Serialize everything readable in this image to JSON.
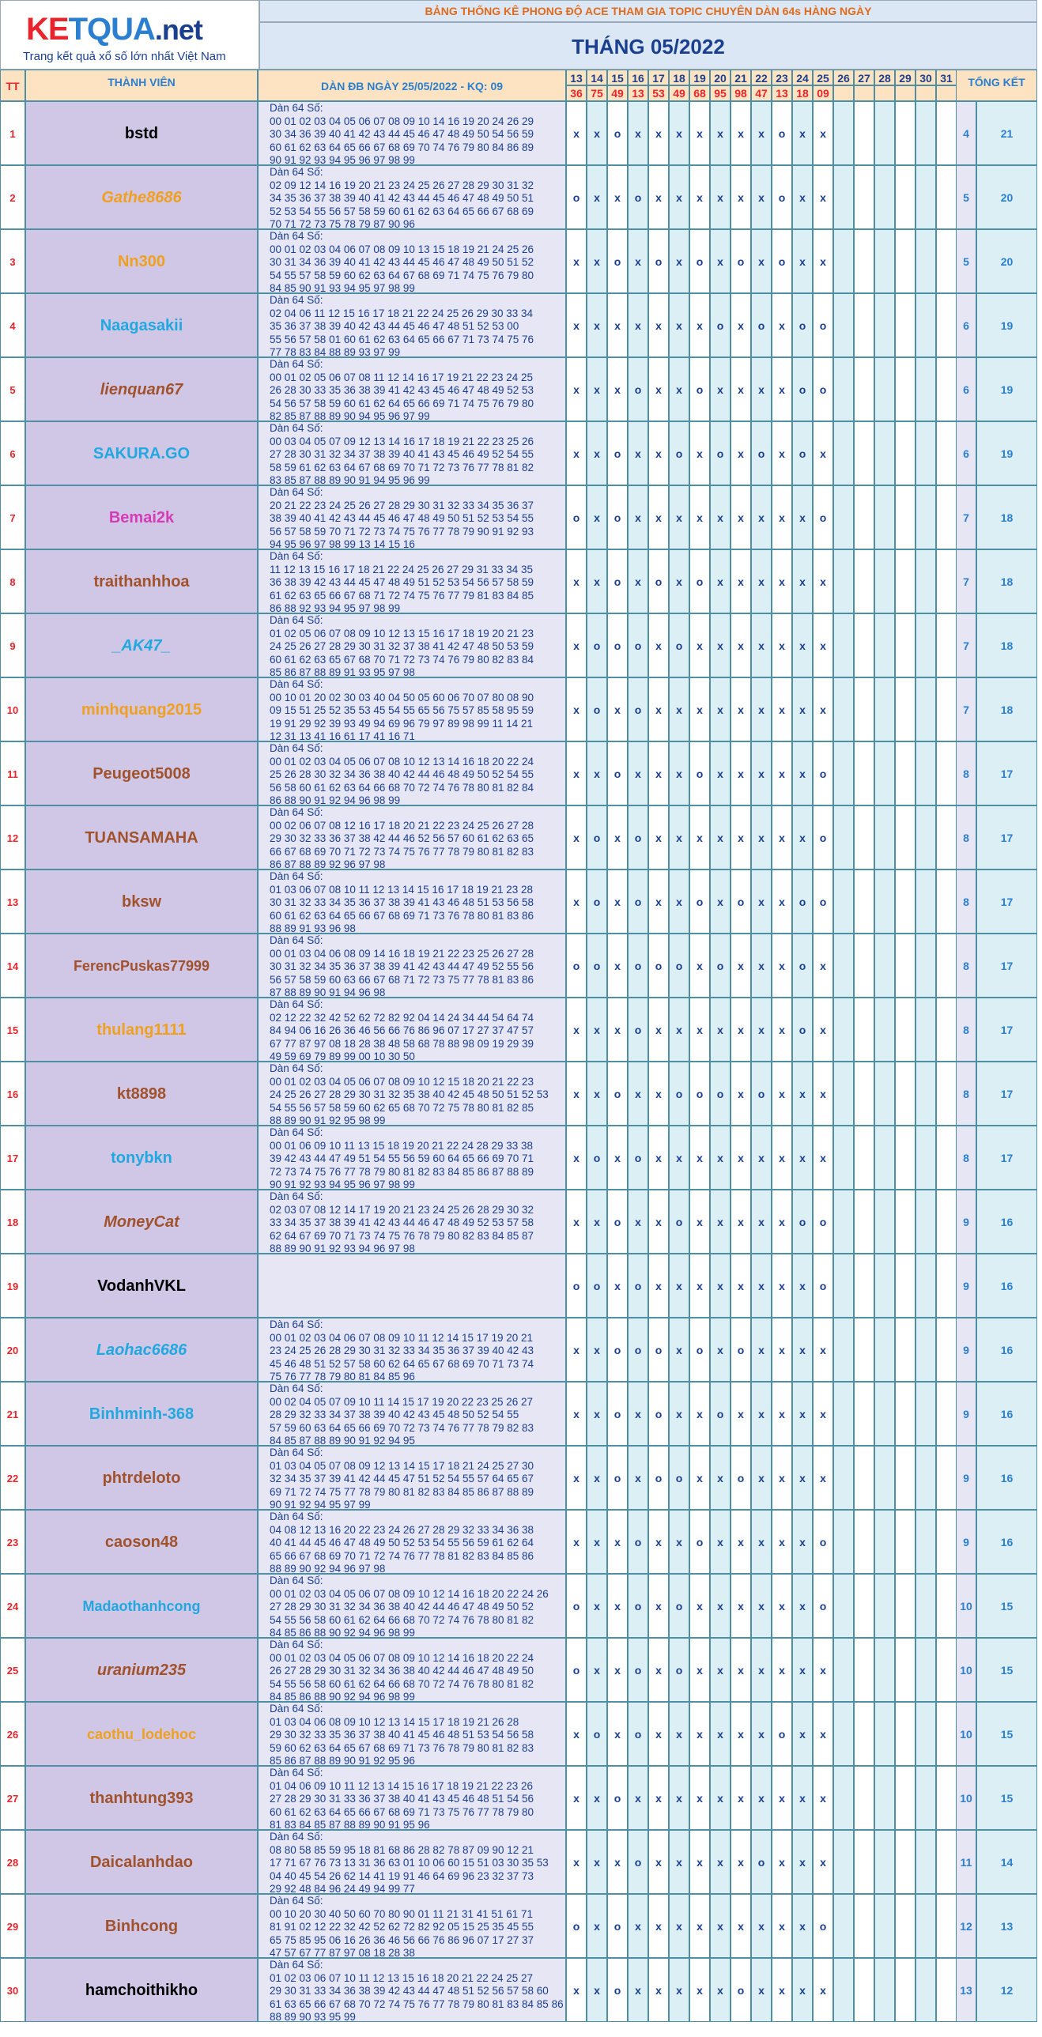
{
  "logo": {
    "k": "KE",
    "q": "TQUA",
    "net": ".net",
    "tagline": "Trang kết quả xổ số lớn nhất Việt Nam"
  },
  "banner": "BẢNG THỐNG KÊ PHONG ĐỘ ACE THAM GIA TOPIC CHUYÊN DÀN 64s HÀNG NGÀY",
  "month_title": "THÁNG 05/2022",
  "headers": {
    "tt": "TT",
    "member": "THÀNH VIÊN",
    "dan": "DÀN ĐB NGÀY 25/05/2022 - KQ: 09",
    "total": "TỔNG KẾT"
  },
  "days": [
    "13",
    "14",
    "15",
    "16",
    "17",
    "18",
    "19",
    "20",
    "21",
    "22",
    "23",
    "24",
    "25",
    "26",
    "27",
    "28",
    "29",
    "30",
    "31"
  ],
  "results": [
    "36",
    "75",
    "49",
    "13",
    "53",
    "49",
    "68",
    "95",
    "98",
    "47",
    "13",
    "18",
    "09",
    "",
    "",
    "",
    "",
    "",
    ""
  ],
  "rows": [
    {
      "tt": "1",
      "name": "bstd",
      "color": "#000000",
      "italic": false,
      "dan": "Dàn 64 Số:\n00 01 02 03 04 05 06 07 08 09 10 14 16 19 20 24 26 29\n30 34 36 39 40 41 42 43 44 45 46 47 48 49 50 54 56 59\n60 61 62 63 64 65 66 67 68 69 70 74 76 79 80 84 86 89\n90 91 92 93 94 95 96 97 98 99",
      "marks": [
        "x",
        "x",
        "o",
        "x",
        "x",
        "x",
        "x",
        "x",
        "x",
        "x",
        "o",
        "x",
        "x"
      ],
      "a": "4",
      "b": "21"
    },
    {
      "tt": "2",
      "name": "Gathe8686",
      "color": "#f0a020",
      "italic": true,
      "dan": "Dàn 64 Số:\n02 09 12 14 16 19 20 21 23 24 25 26 27 28 29 30 31 32\n34 35 36 37 38 39 40 41 42 43 44 45 46 47 48 49 50 51\n52 53 54 55 56 57 58 59 60 61 62 63 64 65 66 67 68 69\n70 71 72 73 75 78 79 87 90 96",
      "marks": [
        "o",
        "x",
        "x",
        "o",
        "x",
        "x",
        "x",
        "x",
        "x",
        "x",
        "o",
        "x",
        "x"
      ],
      "a": "5",
      "b": "20"
    },
    {
      "tt": "3",
      "name": "Nn300",
      "color": "#f0a020",
      "italic": false,
      "dan": "Dàn 64 Số:\n00 01 02 03 04 06 07 08 09 10 13 15 18 19 21 24 25 26\n30 31 34 36 39 40 41 42 43 44 45 46 47 48 49 50 51 52\n54 55 57 58 59 60 62 63 64 67 68 69 71 74 75 76 79 80\n84 85 90 91 93 94 95 97 98 99",
      "marks": [
        "x",
        "x",
        "o",
        "x",
        "o",
        "x",
        "o",
        "x",
        "o",
        "x",
        "o",
        "x",
        "x"
      ],
      "a": "5",
      "b": "20"
    },
    {
      "tt": "4",
      "name": "Naagasakii",
      "color": "#22a8e0",
      "italic": false,
      "dan": "Dàn 64 Số:\n02 04 06 11 12 15 16 17 18 21 22 24 25 26 29 30 33 34\n35 36 37 38 39 40 42 43 44 45 46 47 48 51 52 53 00\n55 56 57 58 01 60 61 62 63 64 65 66 67 71 73 74 75 76\n77 78 83 84 88 89 93 97 99",
      "marks": [
        "x",
        "x",
        "x",
        "x",
        "x",
        "x",
        "x",
        "o",
        "x",
        "o",
        "x",
        "o",
        "o"
      ],
      "a": "6",
      "b": "19"
    },
    {
      "tt": "5",
      "name": "lienquan67",
      "color": "#a0522d",
      "italic": true,
      "dan": "Dàn 64 Số:\n00 01 02 05 06 07 08 11 12 14 16 17 19 21 22 23 24 25\n26 28 30 33 35 36 38 39 41 42 43 45 46 47 48 49 52 53\n54 56 57 58 59 60 61 62 64 65 66 69 71 74 75 76 79 80\n82 85 87 88 89 90 94 95 96 97 99",
      "marks": [
        "x",
        "x",
        "x",
        "o",
        "x",
        "x",
        "o",
        "x",
        "x",
        "x",
        "x",
        "o",
        "o"
      ],
      "a": "6",
      "b": "19"
    },
    {
      "tt": "6",
      "name": "SAKURA.GO",
      "color": "#22a8e0",
      "italic": false,
      "dan": "Dàn 64 Số:\n00 03 04 05 07 09 12 13 14 16 17 18 19 21 22 23 25 26\n27 28 30 31 32 34 37 38 39 40 41 43 45 46 49 52 54 55\n58 59 61 62 63 64 67 68 69 70 71 72 73 76 77 78 81 82\n83 85 87 88 89 90 91 94 95 96 99",
      "marks": [
        "x",
        "x",
        "o",
        "x",
        "x",
        "o",
        "x",
        "o",
        "x",
        "o",
        "x",
        "o",
        "x"
      ],
      "a": "6",
      "b": "19"
    },
    {
      "tt": "7",
      "name": "Bemai2k",
      "color": "#d63ab6",
      "italic": false,
      "dan": "Dàn 64 Số:\n20 21 22 23 24 25 26 27 28 29 30 31 32 33 34 35 36 37\n38 39 40 41 42 43 44 45 46 47 48 49 50 51 52 53 54 55\n56 57 58 59 70 71 72 73 74 75 76 77 78 79 90 91 92 93\n94 95 96 97 98 99 13 14 15 16",
      "marks": [
        "o",
        "x",
        "o",
        "x",
        "x",
        "x",
        "x",
        "x",
        "x",
        "x",
        "x",
        "x",
        "o"
      ],
      "a": "7",
      "b": "18"
    },
    {
      "tt": "8",
      "name": "traithanhhoa",
      "color": "#a0522d",
      "italic": false,
      "dan": "Dàn 64 Số:\n11 12 13 15 16 17 18 21 22 24 25 26 27 29 31 33 34 35\n36 38 39 42 43 44 45 47 48 49 51 52 53 54 56 57 58 59\n61 62 63 65 66 67 68 71 72 74 75 76 77 79 81 83 84 85\n86 88 92 93 94 95 97 98 99",
      "marks": [
        "x",
        "x",
        "o",
        "x",
        "o",
        "x",
        "o",
        "x",
        "x",
        "x",
        "x",
        "x",
        "x"
      ],
      "a": "7",
      "b": "18"
    },
    {
      "tt": "9",
      "name": "_AK47_",
      "color": "#22a8e0",
      "italic": true,
      "dan": "Dàn 64 Số:\n01 02 05 06 07 08 09 10 12 13 15 16 17 18 19 20 21 23\n24 25 26 27 28 29 30 31 32 37 38 41 42 47 48 50 53 59\n60 61 62 63 65 67 68 70 71 72 73 74 76 79 80 82 83 84\n85 86 87 88 89 91 93 95 97 98",
      "marks": [
        "x",
        "o",
        "o",
        "o",
        "x",
        "o",
        "x",
        "x",
        "x",
        "x",
        "x",
        "x",
        "x"
      ],
      "a": "7",
      "b": "18"
    },
    {
      "tt": "10",
      "name": "minhquang2015",
      "color": "#f0a020",
      "italic": false,
      "dan": "Dàn 64 Số:\n00 10 01 20 02 30 03 40 04 50 05 60 06 70 07 80 08 90\n09 15 51 25 52 35 53 45 54 55 65 56 75 57 85 58 95 59\n19 91 29 92 39 93 49 94 69 96 79 97 89 98 99 11 14 21\n12 31 13 41 16 61 17 41 16 71",
      "marks": [
        "x",
        "o",
        "x",
        "o",
        "x",
        "x",
        "x",
        "x",
        "x",
        "x",
        "x",
        "x",
        "x"
      ],
      "a": "7",
      "b": "18"
    },
    {
      "tt": "11",
      "name": "Peugeot5008",
      "color": "#a0522d",
      "italic": false,
      "dan": "Dàn 64 Số:\n00 01 02 03 04 05 06 07 08 10 12 13 14 16 18 20 22 24\n25 26 28 30 32 34 36 38 40 42 44 46 48 49 50 52 54 55\n56 58 60 61 62 63 64 66 68 70 72 74 76 78 80 81 82 84\n86 88 90 91 92 94 96 98 99",
      "marks": [
        "x",
        "x",
        "o",
        "x",
        "x",
        "x",
        "o",
        "x",
        "x",
        "x",
        "x",
        "x",
        "o"
      ],
      "a": "8",
      "b": "17"
    },
    {
      "tt": "12",
      "name": "TUANSAMAHA",
      "color": "#a0522d",
      "italic": false,
      "dan": "Dàn 64 Số:\n00 02 06 07 08 12 16 17 18 20 21 22 23 24 25 26 27 28\n29 30 32 33 36 37 38 42 44 46 52 56 57 60 61 62 63 65\n66 67 68 69 70 71 72 73 74 75 76 77 78 79 80 81 82 83\n86 87 88 89 92 96 97 98",
      "marks": [
        "x",
        "o",
        "x",
        "o",
        "x",
        "x",
        "x",
        "x",
        "x",
        "x",
        "x",
        "x",
        "o"
      ],
      "a": "8",
      "b": "17"
    },
    {
      "tt": "13",
      "name": "bksw",
      "color": "#a0522d",
      "italic": false,
      "dan": "Dàn 64 Số:\n01 03 06 07 08 10 11 12 13 14 15 16 17 18 19 21 23 28\n30 31 32 33 34 35 36 37 38 39 41 43 46 48 51 53 56 58\n60 61 62 63 64 65 66 67 68 69 71 73 76 78 80 81 83 86\n88 89 91 93 96 98",
      "marks": [
        "x",
        "o",
        "x",
        "o",
        "x",
        "x",
        "o",
        "x",
        "o",
        "x",
        "x",
        "o",
        "o"
      ],
      "a": "8",
      "b": "17"
    },
    {
      "tt": "14",
      "name": "FerencPuskas77999",
      "color": "#a0522d",
      "italic": false,
      "dan": "Dàn 64 Số:\n00 01 03 04 06 08 09 14 16 18 19 21 22 23 25 26 27 28\n30 31 32 34 35 36 37 38 39 41 42 43 44 47 49 52 55 56\n56 57 58 59 60 63 66 67 68 71 72 73 75 77 78 81 83 86\n87 88 89 90 91 94 96 98",
      "marks": [
        "o",
        "o",
        "x",
        "o",
        "o",
        "o",
        "x",
        "o",
        "x",
        "x",
        "x",
        "o",
        "x"
      ],
      "a": "8",
      "b": "17"
    },
    {
      "tt": "15",
      "name": "thulang1111",
      "color": "#f0a020",
      "italic": false,
      "dan": "Dàn 64 Số:\n02 12 22 32 42 52 62 72 82 92 04 14 24 34 44 54 64 74\n84 94 06 16 26 36 46 56 66 76 86 96 07 17 27 37 47 57\n67 77 87 97 08 18 28 38 48 58 68 78 88 98 09 19 29 39\n49 59 69 79 89 99 00 10 30 50",
      "marks": [
        "x",
        "x",
        "x",
        "o",
        "x",
        "x",
        "x",
        "x",
        "x",
        "x",
        "x",
        "o",
        "x"
      ],
      "a": "8",
      "b": "17"
    },
    {
      "tt": "16",
      "name": "kt8898",
      "color": "#a0522d",
      "italic": false,
      "dan": "Dàn 64 Số:\n00 01 02 03 04 05 06 07 08 09 10 12 15 18 20 21 22 23\n24 25 26 27 28 29 30 31 32 35 38 40 42 45 48 50 51 52 53\n54 55 56 57 58 59 60 62 65 68 70 72 75 78 80 81 82 85\n88 89 90 91 92 95 98 99",
      "marks": [
        "x",
        "x",
        "o",
        "x",
        "x",
        "o",
        "o",
        "o",
        "x",
        "o",
        "x",
        "x",
        "x"
      ],
      "a": "8",
      "b": "17"
    },
    {
      "tt": "17",
      "name": "tonybkn",
      "color": "#22a8e0",
      "italic": false,
      "dan": "Dàn 64 Số:\n00 01 06 09 10 11 13 15 18 19 20 21 22 24 28 29 33 38\n39 42 43 44 47 49 51 54 55 56 59 60 64 65 66 69 70 71\n72 73 74 75 76 77 78 79 80 81 82 83 84 85 86 87 88 89\n90 91 92 93 94 95 96 97 98 99",
      "marks": [
        "x",
        "o",
        "x",
        "o",
        "x",
        "x",
        "x",
        "x",
        "x",
        "x",
        "x",
        "x",
        "x"
      ],
      "a": "8",
      "b": "17"
    },
    {
      "tt": "18",
      "name": "MoneyCat",
      "color": "#a0522d",
      "italic": true,
      "dan": "Dàn 64 Số:\n02 03 07 08 12 14 17 19 20 21 23 24 25 26 28 29 30 32\n33 34 35 37 38 39 41 42 43 44 46 47 48 49 52 53 57 58\n62 64 67 69 70 71 73 74 75 76 78 79 80 82 83 84 85 87\n88 89 90 91 92 93 94 96 97 98",
      "marks": [
        "x",
        "x",
        "o",
        "x",
        "x",
        "o",
        "x",
        "x",
        "x",
        "x",
        "x",
        "o",
        "o"
      ],
      "a": "9",
      "b": "16"
    },
    {
      "tt": "19",
      "name": "VodanhVKL",
      "color": "#000000",
      "italic": false,
      "dan": "",
      "marks": [
        "o",
        "o",
        "x",
        "o",
        "x",
        "x",
        "x",
        "x",
        "x",
        "x",
        "x",
        "x",
        "o"
      ],
      "a": "9",
      "b": "16"
    },
    {
      "tt": "20",
      "name": "Laohac6686",
      "color": "#22a8e0",
      "italic": true,
      "dan": "Dàn 64 Số:\n00 01 02 03 04 06 07 08 09 10 11 12 14 15 17 19 20 21\n23 24 25 26 28 29 30 31 32 33 34 35 36 37 39 40 42 43\n45 46 48 51 52 57 58 60 62 64 65 67 68 69 70 71 73 74\n75 76 77 78 79 80 81 84 85 96",
      "marks": [
        "x",
        "x",
        "o",
        "o",
        "o",
        "x",
        "o",
        "x",
        "o",
        "x",
        "x",
        "x",
        "x"
      ],
      "a": "9",
      "b": "16"
    },
    {
      "tt": "21",
      "name": "Binhminh-368",
      "color": "#22a8e0",
      "italic": false,
      "dan": "Dàn 64 Số:\n00 02 04 05 07 09 10 11 14 15 17 19 20 22 23 25 26 27\n28 29 32 33 34 37 38 39 40 42 43 45 48 50 52 54 55\n57 59 60 63 64 65 66 69 70 72 73 74 76 77 78 79 82 83\n84 85 87 88 89 90 91 92 94 95",
      "marks": [
        "x",
        "x",
        "o",
        "x",
        "o",
        "x",
        "x",
        "o",
        "x",
        "x",
        "x",
        "x",
        "x"
      ],
      "a": "9",
      "b": "16"
    },
    {
      "tt": "22",
      "name": "phtrdeloto",
      "color": "#a0522d",
      "italic": false,
      "dan": "Dàn 64 Số:\n01 03 04 05 07 08 09 12 13 14 15 17 18 21 24 25 27 30\n32 34 35 37 39 41 42 44 45 47 51 52 54 55 57 64 65 67\n69 71 72 74 75 77 78 79 80 81 82 83 84 85 86 87 88 89\n90 91 92 94 95 97 99",
      "marks": [
        "x",
        "x",
        "o",
        "x",
        "o",
        "o",
        "x",
        "x",
        "o",
        "x",
        "x",
        "x",
        "x"
      ],
      "a": "9",
      "b": "16"
    },
    {
      "tt": "23",
      "name": "caoson48",
      "color": "#a0522d",
      "italic": false,
      "dan": "Dàn 64 Số:\n04 08 12 13 16 20 22 23 24 26 27 28 29 32 33 34 36 38\n40 41 44 45 46 47 48 49 50 52 53 54 55 56 59 61 62 64\n65 66 67 68 69 70 71 72 74 76 77 78 81 82 83 84 85 86\n88 89 90 92 94 96 97 98",
      "marks": [
        "x",
        "x",
        "x",
        "o",
        "x",
        "x",
        "o",
        "x",
        "x",
        "x",
        "x",
        "x",
        "o"
      ],
      "a": "9",
      "b": "16"
    },
    {
      "tt": "24",
      "name": "Madaothanhcong",
      "color": "#22a8e0",
      "italic": false,
      "dan": "Dàn 64 Số:\n00 01 02 03 04 05 06 07 08 09 10 12 14 16 18 20 22 24 26\n27 28 29 30 31 32 34 36 38 40 42 44 46 47 48 49 50 52\n54 55 56 58 60 61 62 64 66 68 70 72 74 76 78 80 81 82\n84 85 86 88 90 92 94 96 98 99",
      "marks": [
        "o",
        "x",
        "x",
        "o",
        "x",
        "o",
        "x",
        "x",
        "x",
        "x",
        "x",
        "x",
        "o"
      ],
      "a": "10",
      "b": "15"
    },
    {
      "tt": "25",
      "name": "uranium235",
      "color": "#a0522d",
      "italic": true,
      "dan": "Dàn 64 Số:\n00 01 02 03 04 05 06 07 08 09 10 12 14 16 18 20 22 24\n26 27 28 29 30 31 32 34 36 38 40 42 44 46 47 48 49 50\n54 55 56 58 60 61 62 64 66 68 70 72 74 76 78 80 81 82\n84 85 86 88 90 92 94 96 98 99",
      "marks": [
        "o",
        "x",
        "x",
        "o",
        "x",
        "o",
        "x",
        "x",
        "x",
        "x",
        "x",
        "x",
        "x"
      ],
      "a": "10",
      "b": "15"
    },
    {
      "tt": "26",
      "name": "caothu_lodehoc",
      "color": "#f0a020",
      "italic": false,
      "dan": "Dàn 64 Số:\n01 03 04 06 08 09 10 12 13 14 15 17 18 19 21 26 28\n29 30 32 33 35 36 37 38 40 41 45 46 48 51 53 54 56 58\n59 60 62 63 64 65 67 68 69 71 73 76 78 79 80 81 82 83\n85 86 87 88 89 90 91 92 95 96",
      "marks": [
        "x",
        "o",
        "x",
        "o",
        "x",
        "x",
        "x",
        "x",
        "x",
        "x",
        "o",
        "x",
        "x"
      ],
      "a": "10",
      "b": "15"
    },
    {
      "tt": "27",
      "name": "thanhtung393",
      "color": "#a0522d",
      "italic": false,
      "dan": "Dàn 64 Số:\n01 04 06 09 10 11 12 13 14 15 16 17 18 19 21 22 23 26\n27 28 29 30 31 33 36 37 38 40 41 43 45 46 48 51 54 56\n60 61 62 63 64 65 66 67 68 69 71 73 75 76 77 78 79 80\n81 83 84 85 87 88 89 90 91 95 96",
      "marks": [
        "x",
        "x",
        "o",
        "x",
        "x",
        "x",
        "x",
        "x",
        "x",
        "x",
        "x",
        "x",
        "x"
      ],
      "a": "10",
      "b": "15"
    },
    {
      "tt": "28",
      "name": "Daicalanhdao",
      "color": "#a0522d",
      "italic": false,
      "dan": "Dàn 64 Số:\n08 80 58 85 59 95 18 81 68 86 28 82 78 87 09 90 12 21\n17 71 67 76 73 13 31 36 63 01 10 06 60 15 51 03 30 35 53\n04 40 45 54 26 62 14 41 19 91 46 64 69 96 23 32 37 73\n29 92 48 84 96 24 49 94 99 77",
      "marks": [
        "x",
        "x",
        "x",
        "o",
        "x",
        "x",
        "x",
        "x",
        "x",
        "o",
        "x",
        "x",
        "x"
      ],
      "a": "11",
      "b": "14"
    },
    {
      "tt": "29",
      "name": "Binhcong",
      "color": "#a0522d",
      "italic": false,
      "dan": "Dàn 64 Số:\n00 10 20 30 40 50 60 70 80 90 01 11 21 31 41 51 61 71\n81 91 02 12 22 32 42 52 62 72 82 92 05 15 25 35 45 55\n65 75 85 95 06 16 26 36 46 56 66 76 86 96 07 17 27 37\n47 57 67 77 87 97 08 18 28 38",
      "marks": [
        "o",
        "x",
        "o",
        "x",
        "x",
        "x",
        "x",
        "x",
        "x",
        "x",
        "x",
        "x",
        "o"
      ],
      "a": "12",
      "b": "13"
    },
    {
      "tt": "30",
      "name": "hamchoithikho",
      "color": "#000000",
      "italic": false,
      "dan": "Dàn 64 Số:\n01 02 03 06 07 10 11 12 13 15 16 18 20 21 22 24 25 27\n29 30 31 33 34 36 38 39 42 43 44 47 48 51 52 56 57 58 60\n61 63 65 66 67 68 70 72 74 75 76 77 78 79 80 81 83 84 85 86\n88 89 90 93 95 99",
      "marks": [
        "x",
        "x",
        "o",
        "x",
        "x",
        "x",
        "x",
        "x",
        "o",
        "x",
        "x",
        "x",
        "x"
      ],
      "a": "13",
      "b": "12"
    }
  ]
}
